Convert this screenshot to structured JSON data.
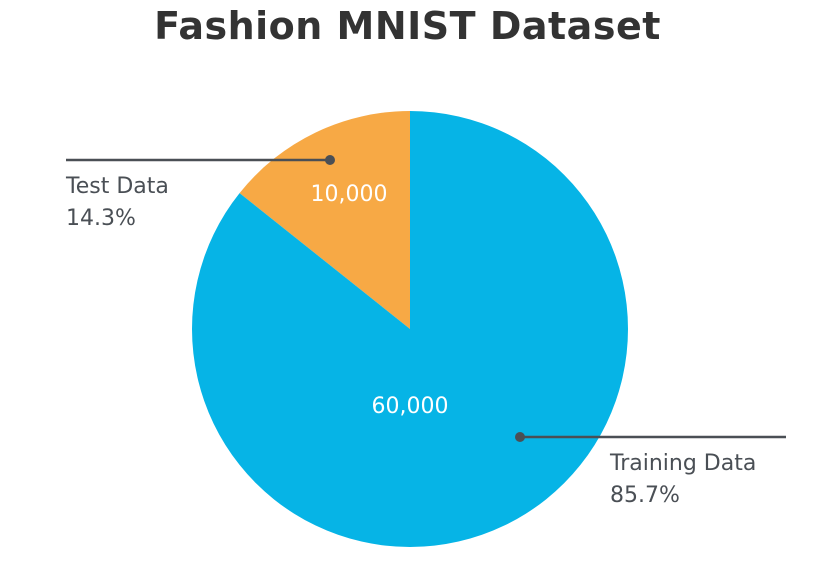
{
  "chart_data": {
    "type": "pie",
    "title": "Fashion MNIST Dataset",
    "slices": [
      {
        "name": "Test Data",
        "value": 10000,
        "value_label": "10,000",
        "percent_label": "14.3%",
        "color": "#F7A945"
      },
      {
        "name": "Training Data",
        "value": 60000,
        "value_label": "60,000",
        "percent_label": "85.7%",
        "color": "#06B4E6"
      }
    ],
    "start_angle_deg": 0,
    "direction": "counterclockwise",
    "label_color": "#FFFFFF",
    "callout_line_color": "#4A4F55"
  }
}
